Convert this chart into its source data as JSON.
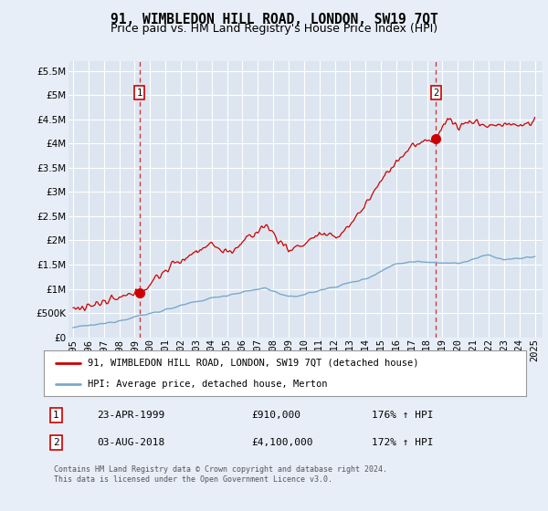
{
  "title": "91, WIMBLEDON HILL ROAD, LONDON, SW19 7QT",
  "subtitle": "Price paid vs. HM Land Registry's House Price Index (HPI)",
  "ytick_values": [
    0,
    500000,
    1000000,
    1500000,
    2000000,
    2500000,
    3000000,
    3500000,
    4000000,
    4500000,
    5000000,
    5500000
  ],
  "ylim": [
    0,
    5700000
  ],
  "xlim_start": 1994.7,
  "xlim_end": 2025.5,
  "xticks": [
    1995,
    1996,
    1997,
    1998,
    1999,
    2000,
    2001,
    2002,
    2003,
    2004,
    2005,
    2006,
    2007,
    2008,
    2009,
    2010,
    2011,
    2012,
    2013,
    2014,
    2015,
    2016,
    2017,
    2018,
    2019,
    2020,
    2021,
    2022,
    2023,
    2024,
    2025
  ],
  "background_color": "#e8eef8",
  "plot_bg_color": "#dde6f0",
  "grid_color": "#ffffff",
  "red_line_color": "#cc0000",
  "blue_line_color": "#7aa8cc",
  "marker1_year": 1999.31,
  "marker1_value": 910000,
  "marker2_year": 2018.58,
  "marker2_value": 4100000,
  "legend_red_label": "91, WIMBLEDON HILL ROAD, LONDON, SW19 7QT (detached house)",
  "legend_blue_label": "HPI: Average price, detached house, Merton",
  "annotation1_text": "23-APR-1999",
  "annotation1_price": "£910,000",
  "annotation1_hpi": "176% ↑ HPI",
  "annotation2_text": "03-AUG-2018",
  "annotation2_price": "£4,100,000",
  "annotation2_hpi": "172% ↑ HPI",
  "footer_text": "Contains HM Land Registry data © Crown copyright and database right 2024.\nThis data is licensed under the Open Government Licence v3.0.",
  "title_fontsize": 10.5,
  "subtitle_fontsize": 9,
  "tick_fontsize": 7.5
}
